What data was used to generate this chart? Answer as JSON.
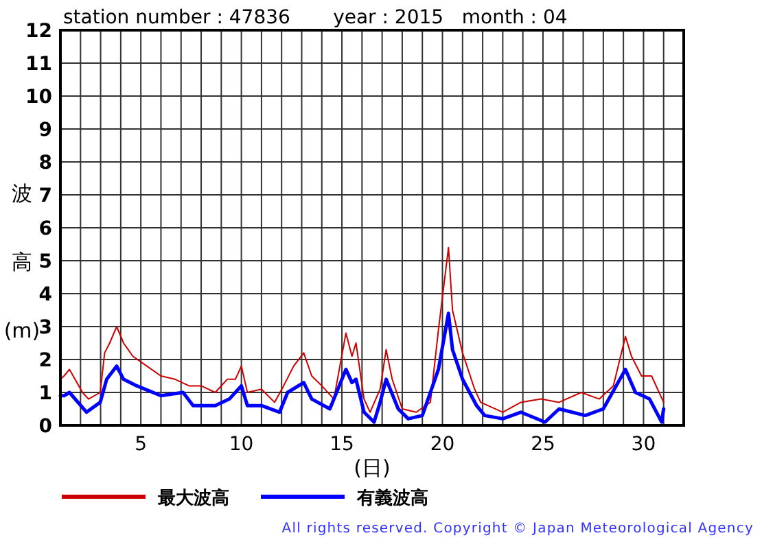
{
  "chart_data": {
    "type": "line",
    "title": "station number : 47836       year : 2015   month : 04",
    "xlabel": "(日)",
    "ylabel": "波高(m)",
    "xlim": [
      1,
      32
    ],
    "ylim": [
      0,
      12
    ],
    "xticks": [
      {
        "value": 2,
        "label": null
      },
      {
        "value": 3,
        "label": null
      },
      {
        "value": 4,
        "label": null
      },
      5,
      {
        "value": 6,
        "label": null
      },
      {
        "value": 7,
        "label": null
      },
      {
        "value": 8,
        "label": null
      },
      {
        "value": 9,
        "label": null
      },
      10,
      {
        "value": 11,
        "label": null
      },
      {
        "value": 12,
        "label": null
      },
      {
        "value": 13,
        "label": null
      },
      {
        "value": 14,
        "label": null
      },
      15,
      {
        "value": 16,
        "label": null
      },
      {
        "value": 17,
        "label": null
      },
      {
        "value": 18,
        "label": null
      },
      {
        "value": 19,
        "label": null
      },
      20,
      {
        "value": 21,
        "label": null
      },
      {
        "value": 22,
        "label": null
      },
      {
        "value": 23,
        "label": null
      },
      {
        "value": 24,
        "label": null
      },
      25,
      {
        "value": 26,
        "label": null
      },
      {
        "value": 27,
        "label": null
      },
      {
        "value": 28,
        "label": null
      },
      {
        "value": 29,
        "label": null
      },
      30,
      {
        "value": 31,
        "label": null
      }
    ],
    "yticks": [
      0,
      1,
      2,
      3,
      4,
      5,
      6,
      7,
      8,
      9,
      10,
      11,
      12
    ],
    "grid": true,
    "legend": "bottom",
    "marker": "none",
    "line_style": "solid",
    "series": [
      {
        "name": "最大波高",
        "color": "#cc0000",
        "x": [
          1.0,
          1.18,
          1.45,
          2.1,
          2.4,
          2.98,
          3.2,
          3.45,
          3.8,
          4.14,
          4.6,
          5.3,
          6.0,
          6.7,
          7.4,
          8.0,
          8.7,
          9.3,
          9.7,
          10.0,
          10.3,
          11.0,
          11.65,
          12.1,
          12.6,
          13.1,
          13.5,
          14.0,
          14.6,
          15.2,
          15.5,
          15.7,
          16.1,
          16.4,
          16.9,
          17.2,
          17.5,
          18.0,
          18.7,
          19.4,
          19.8,
          20.3,
          20.5,
          21.0,
          21.6,
          21.9,
          23.0,
          23.9,
          24.9,
          25.8,
          26.9,
          27.8,
          28.5,
          29.1,
          29.4,
          29.9,
          30.4,
          31.0
        ],
        "values": [
          1.4,
          1.5,
          1.7,
          1.0,
          0.8,
          1.0,
          2.2,
          2.5,
          3.0,
          2.5,
          2.1,
          1.8,
          1.5,
          1.4,
          1.2,
          1.2,
          1.0,
          1.4,
          1.4,
          1.8,
          1.0,
          1.1,
          0.7,
          1.2,
          1.8,
          2.2,
          1.5,
          1.2,
          0.8,
          2.8,
          2.1,
          2.5,
          0.8,
          0.4,
          1.1,
          2.3,
          1.4,
          0.5,
          0.4,
          0.7,
          2.9,
          5.4,
          3.5,
          2.2,
          1.1,
          0.7,
          0.4,
          0.7,
          0.8,
          0.7,
          1.0,
          0.8,
          1.2,
          2.7,
          2.1,
          1.5,
          1.5,
          0.7
        ]
      },
      {
        "name": "有義波高",
        "color": "#0000ff",
        "x": [
          1.0,
          1.18,
          1.45,
          2.3,
          2.98,
          3.3,
          3.8,
          4.14,
          4.8,
          6.0,
          7.1,
          7.6,
          8.7,
          9.4,
          10.0,
          10.3,
          11.0,
          11.9,
          12.3,
          13.1,
          13.5,
          14.4,
          15.2,
          15.5,
          15.7,
          16.1,
          16.6,
          16.9,
          17.2,
          17.8,
          18.3,
          19.0,
          19.8,
          20.3,
          20.5,
          21.0,
          21.7,
          22.1,
          23.0,
          23.9,
          25.1,
          25.8,
          27.1,
          28.0,
          29.1,
          29.6,
          30.3,
          30.9,
          31.0
        ],
        "values": [
          0.9,
          0.9,
          1.0,
          0.4,
          0.7,
          1.4,
          1.8,
          1.4,
          1.2,
          0.9,
          1.0,
          0.6,
          0.6,
          0.8,
          1.2,
          0.6,
          0.6,
          0.4,
          1.0,
          1.3,
          0.8,
          0.5,
          1.7,
          1.3,
          1.4,
          0.4,
          0.1,
          0.7,
          1.4,
          0.5,
          0.2,
          0.3,
          1.7,
          3.4,
          2.3,
          1.4,
          0.6,
          0.3,
          0.2,
          0.4,
          0.1,
          0.5,
          0.3,
          0.5,
          1.7,
          1.0,
          0.8,
          0.1,
          0.5
        ]
      }
    ],
    "annotations": [
      "All rights reserved. Copyright © Japan Meteorological Agency"
    ]
  }
}
